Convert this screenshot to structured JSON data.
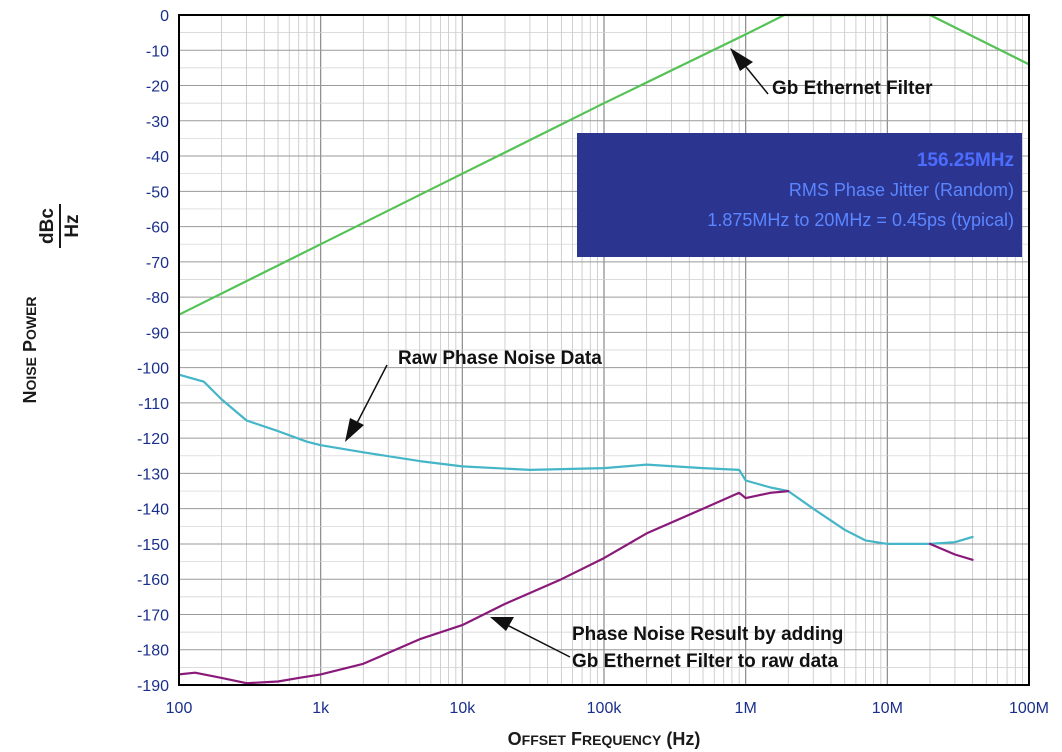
{
  "chart_data": {
    "type": "line",
    "xlabel": "Offset Frequency (Hz)",
    "ylabel_main": "Noise Power",
    "ylabel_unit_num": "dBc",
    "ylabel_unit_den": "Hz",
    "x_scale": "log",
    "xlim": [
      100,
      100000000
    ],
    "ylim": [
      -190,
      0
    ],
    "grid": true,
    "x_ticks": [
      {
        "value": 100,
        "label": "100"
      },
      {
        "value": 1000,
        "label": "1k"
      },
      {
        "value": 10000,
        "label": "10k"
      },
      {
        "value": 100000,
        "label": "100k"
      },
      {
        "value": 1000000,
        "label": "1M"
      },
      {
        "value": 10000000,
        "label": "10M"
      },
      {
        "value": 100000000,
        "label": "100M"
      }
    ],
    "y_ticks": [
      0,
      -10,
      -20,
      -30,
      -40,
      -50,
      -60,
      -70,
      -80,
      -90,
      -100,
      -110,
      -120,
      -130,
      -140,
      -150,
      -160,
      -170,
      -180,
      -190
    ],
    "series": [
      {
        "key": "filter",
        "color": "#55c255",
        "points": [
          [
            100,
            -85
          ],
          [
            1000,
            -65
          ],
          [
            10000,
            -45
          ],
          [
            100000,
            -25
          ],
          [
            1000000,
            -5.5
          ],
          [
            1875000,
            0
          ],
          [
            20000000,
            0
          ],
          [
            100000000,
            -14
          ]
        ]
      },
      {
        "key": "raw",
        "color": "#45b5c8",
        "points": [
          [
            100,
            -102
          ],
          [
            150,
            -104
          ],
          [
            200,
            -109
          ],
          [
            300,
            -115
          ],
          [
            500,
            -118
          ],
          [
            800,
            -121
          ],
          [
            1000,
            -122
          ],
          [
            2000,
            -124
          ],
          [
            5000,
            -126.5
          ],
          [
            10000,
            -128
          ],
          [
            30000,
            -129
          ],
          [
            100000,
            -128.5
          ],
          [
            200000,
            -127.5
          ],
          [
            500000,
            -128.5
          ],
          [
            900000,
            -129
          ],
          [
            1000000,
            -132
          ],
          [
            1500000,
            -134
          ],
          [
            2000000,
            -135
          ],
          [
            3000000,
            -140
          ],
          [
            5000000,
            -146
          ],
          [
            7000000,
            -149
          ],
          [
            10000000,
            -150
          ],
          [
            20000000,
            -150
          ],
          [
            30000000,
            -149.5
          ],
          [
            40000000,
            -148
          ]
        ]
      },
      {
        "key": "result",
        "color": "#8a1a7a",
        "points": [
          [
            100,
            -187
          ],
          [
            130,
            -186.5
          ],
          [
            200,
            -188
          ],
          [
            300,
            -189.5
          ],
          [
            500,
            -189
          ],
          [
            700,
            -188
          ],
          [
            1000,
            -187
          ],
          [
            2000,
            -184
          ],
          [
            5000,
            -177
          ],
          [
            10000,
            -173
          ],
          [
            20000,
            -167
          ],
          [
            50000,
            -160
          ],
          [
            100000,
            -154
          ],
          [
            200000,
            -147
          ],
          [
            500000,
            -140
          ],
          [
            900000,
            -135.5
          ],
          [
            1000000,
            -137
          ],
          [
            1500000,
            -135.5
          ],
          [
            2000000,
            -135
          ]
        ]
      },
      {
        "key": "result-tail",
        "color": "#8a1a7a",
        "points": [
          [
            20000000,
            -150
          ],
          [
            30000000,
            -153
          ],
          [
            40000000,
            -154.5
          ]
        ]
      }
    ],
    "annotations": {
      "filter": {
        "text": "Gb Ethernet Filter"
      },
      "raw": {
        "text": "Raw Phase Noise Data"
      },
      "result": {
        "line1": "Phase Noise Result by adding",
        "line2": "Gb Ethernet Filter to raw data"
      }
    },
    "info_box": {
      "line1": "156.25MHz",
      "line2": "RMS Phase Jitter (Random)",
      "line3": "1.875MHz to 20MHz = 0.45ps (typical)",
      "bg_color": "#2b3590"
    }
  }
}
